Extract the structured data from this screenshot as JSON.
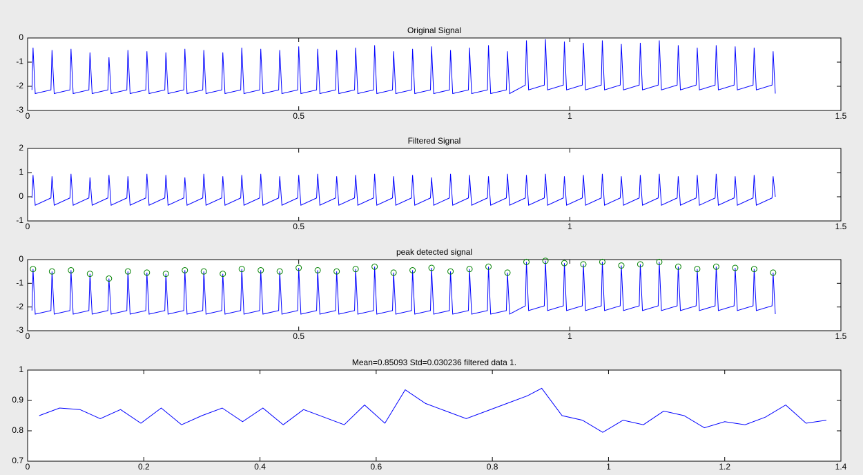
{
  "chart_data": [
    {
      "type": "line",
      "title": "Original Signal",
      "xlim": [
        0,
        1.5
      ],
      "xticks": [
        0,
        0.5,
        1,
        1.5
      ],
      "ylim": [
        -3,
        0
      ],
      "yticks": [
        -3,
        -2,
        -1,
        0
      ],
      "series": [
        {
          "color": "#0000ff",
          "x": [
            0.008,
            0.01,
            0.014,
            0.043,
            0.045,
            0.049,
            0.078,
            0.08,
            0.084,
            0.113,
            0.115,
            0.119,
            0.148,
            0.15,
            0.154,
            0.183,
            0.185,
            0.189,
            0.218,
            0.22,
            0.224,
            0.253,
            0.255,
            0.259,
            0.288,
            0.29,
            0.294,
            0.323,
            0.325,
            0.329,
            0.358,
            0.36,
            0.364,
            0.393,
            0.395,
            0.399,
            0.428,
            0.43,
            0.434,
            0.463,
            0.465,
            0.469,
            0.498,
            0.5,
            0.504,
            0.533,
            0.535,
            0.539,
            0.568,
            0.57,
            0.574,
            0.603,
            0.605,
            0.609,
            0.638,
            0.64,
            0.644,
            0.673,
            0.675,
            0.679,
            0.708,
            0.71,
            0.714,
            0.743,
            0.745,
            0.749,
            0.778,
            0.78,
            0.784,
            0.813,
            0.815,
            0.819,
            0.848,
            0.85,
            0.854,
            0.883,
            0.885,
            0.889,
            0.918,
            0.92,
            0.924,
            0.953,
            0.955,
            0.959,
            0.988,
            0.99,
            0.994,
            1.023,
            1.025,
            1.029,
            1.058,
            1.06,
            1.064,
            1.093,
            1.095,
            1.099,
            1.128,
            1.13,
            1.134,
            1.163,
            1.165,
            1.169,
            1.198,
            1.2,
            1.204,
            1.233,
            1.235,
            1.239,
            1.268,
            1.27,
            1.274,
            1.303,
            1.305,
            1.309,
            1.338,
            1.34,
            1.344,
            1.373,
            1.375,
            1.379
          ],
          "values": [
            -2.15,
            -0.4,
            -2.3,
            -2.15,
            -0.5,
            -2.3,
            -2.15,
            -0.45,
            -2.3,
            -2.15,
            -0.6,
            -2.3,
            -2.15,
            -0.8,
            -2.3,
            -2.15,
            -0.5,
            -2.3,
            -2.15,
            -0.55,
            -2.3,
            -2.15,
            -0.6,
            -2.3,
            -2.15,
            -0.45,
            -2.3,
            -2.15,
            -0.5,
            -2.3,
            -2.15,
            -0.6,
            -2.3,
            -2.15,
            -0.4,
            -2.3,
            -2.15,
            -0.45,
            -2.3,
            -2.15,
            -0.5,
            -2.3,
            -2.15,
            -0.35,
            -2.3,
            -2.15,
            -0.45,
            -2.3,
            -2.15,
            -0.5,
            -2.3,
            -2.15,
            -0.4,
            -2.3,
            -2.15,
            -0.3,
            -2.3,
            -2.15,
            -0.55,
            -2.3,
            -2.15,
            -0.45,
            -2.3,
            -2.15,
            -0.35,
            -2.3,
            -2.15,
            -0.5,
            -2.3,
            -2.15,
            -0.4,
            -2.3,
            -2.15,
            -0.3,
            -2.3,
            -2.15,
            -0.55,
            -2.3,
            -1.95,
            -0.1,
            -2.15,
            -1.95,
            -0.05,
            -2.15,
            -1.95,
            -0.15,
            -2.15,
            -1.95,
            -0.2,
            -2.15,
            -1.95,
            -0.1,
            -2.15,
            -1.95,
            -0.25,
            -2.15,
            -1.95,
            -0.2,
            -2.15,
            -1.95,
            -0.1,
            -2.15,
            -1.95,
            -0.3,
            -2.15,
            -1.95,
            -0.4,
            -2.15,
            -1.95,
            -0.3,
            -2.15,
            -1.95,
            -0.35,
            -2.15,
            -1.95,
            -0.4,
            -2.15,
            -1.95,
            -0.55,
            -2.3
          ]
        }
      ]
    },
    {
      "type": "line",
      "title": "Filtered Signal",
      "xlim": [
        0,
        1.5
      ],
      "xticks": [
        0,
        0.5,
        1,
        1.5
      ],
      "ylim": [
        -1,
        2
      ],
      "yticks": [
        -1,
        0,
        1,
        2
      ],
      "series": [
        {
          "color": "#0000ff",
          "x": [
            0.008,
            0.01,
            0.014,
            0.043,
            0.045,
            0.049,
            0.078,
            0.08,
            0.084,
            0.113,
            0.115,
            0.119,
            0.148,
            0.15,
            0.154,
            0.183,
            0.185,
            0.189,
            0.218,
            0.22,
            0.224,
            0.253,
            0.255,
            0.259,
            0.288,
            0.29,
            0.294,
            0.323,
            0.325,
            0.329,
            0.358,
            0.36,
            0.364,
            0.393,
            0.395,
            0.399,
            0.428,
            0.43,
            0.434,
            0.463,
            0.465,
            0.469,
            0.498,
            0.5,
            0.504,
            0.533,
            0.535,
            0.539,
            0.568,
            0.57,
            0.574,
            0.603,
            0.605,
            0.609,
            0.638,
            0.64,
            0.644,
            0.673,
            0.675,
            0.679,
            0.708,
            0.71,
            0.714,
            0.743,
            0.745,
            0.749,
            0.778,
            0.78,
            0.784,
            0.813,
            0.815,
            0.819,
            0.848,
            0.85,
            0.854,
            0.883,
            0.885,
            0.889,
            0.918,
            0.92,
            0.924,
            0.953,
            0.955,
            0.959,
            0.988,
            0.99,
            0.994,
            1.023,
            1.025,
            1.029,
            1.058,
            1.06,
            1.064,
            1.093,
            1.095,
            1.099,
            1.128,
            1.13,
            1.134,
            1.163,
            1.165,
            1.169,
            1.198,
            1.2,
            1.204,
            1.233,
            1.235,
            1.239,
            1.268,
            1.27,
            1.274,
            1.303,
            1.305,
            1.309,
            1.338,
            1.34,
            1.344,
            1.373,
            1.375,
            1.379
          ],
          "values": [
            -0.05,
            0.9,
            -0.35,
            -0.05,
            0.85,
            -0.35,
            -0.05,
            0.95,
            -0.35,
            -0.05,
            0.8,
            -0.35,
            -0.05,
            0.9,
            -0.35,
            -0.05,
            0.85,
            -0.35,
            -0.05,
            0.95,
            -0.35,
            -0.05,
            0.9,
            -0.35,
            -0.05,
            0.8,
            -0.35,
            -0.05,
            0.95,
            -0.35,
            -0.05,
            0.85,
            -0.35,
            -0.05,
            0.9,
            -0.35,
            -0.05,
            0.95,
            -0.35,
            -0.05,
            0.85,
            -0.35,
            -0.05,
            0.9,
            -0.35,
            -0.05,
            0.95,
            -0.35,
            -0.05,
            0.85,
            -0.35,
            -0.05,
            0.9,
            -0.35,
            -0.05,
            0.95,
            -0.35,
            -0.05,
            0.85,
            -0.35,
            -0.05,
            0.9,
            -0.35,
            -0.05,
            0.8,
            -0.35,
            -0.05,
            0.95,
            -0.35,
            -0.05,
            0.9,
            -0.35,
            -0.05,
            0.85,
            -0.35,
            -0.05,
            0.95,
            -0.35,
            -0.05,
            0.9,
            -0.35,
            -0.05,
            0.95,
            -0.35,
            -0.05,
            0.85,
            -0.35,
            -0.05,
            0.9,
            -0.35,
            -0.05,
            0.95,
            -0.35,
            -0.05,
            0.85,
            -0.35,
            -0.05,
            0.9,
            -0.35,
            -0.05,
            0.95,
            -0.35,
            -0.05,
            0.85,
            -0.35,
            -0.05,
            0.9,
            -0.35,
            -0.05,
            0.95,
            -0.35,
            -0.05,
            0.85,
            -0.35,
            -0.05,
            0.9,
            -0.35,
            -0.05,
            0.85,
            0
          ]
        }
      ]
    },
    {
      "type": "line",
      "title": "peak detected signal",
      "xlim": [
        0,
        1.5
      ],
      "xticks": [
        0,
        0.5,
        1,
        1.5
      ],
      "ylim": [
        -3,
        0
      ],
      "yticks": [
        -3,
        -2,
        -1,
        0
      ],
      "series": [
        {
          "color": "#0000ff",
          "x": [
            0.008,
            0.01,
            0.014,
            0.043,
            0.045,
            0.049,
            0.078,
            0.08,
            0.084,
            0.113,
            0.115,
            0.119,
            0.148,
            0.15,
            0.154,
            0.183,
            0.185,
            0.189,
            0.218,
            0.22,
            0.224,
            0.253,
            0.255,
            0.259,
            0.288,
            0.29,
            0.294,
            0.323,
            0.325,
            0.329,
            0.358,
            0.36,
            0.364,
            0.393,
            0.395,
            0.399,
            0.428,
            0.43,
            0.434,
            0.463,
            0.465,
            0.469,
            0.498,
            0.5,
            0.504,
            0.533,
            0.535,
            0.539,
            0.568,
            0.57,
            0.574,
            0.603,
            0.605,
            0.609,
            0.638,
            0.64,
            0.644,
            0.673,
            0.675,
            0.679,
            0.708,
            0.71,
            0.714,
            0.743,
            0.745,
            0.749,
            0.778,
            0.78,
            0.784,
            0.813,
            0.815,
            0.819,
            0.848,
            0.85,
            0.854,
            0.883,
            0.885,
            0.889,
            0.918,
            0.92,
            0.924,
            0.953,
            0.955,
            0.959,
            0.988,
            0.99,
            0.994,
            1.023,
            1.025,
            1.029,
            1.058,
            1.06,
            1.064,
            1.093,
            1.095,
            1.099,
            1.128,
            1.13,
            1.134,
            1.163,
            1.165,
            1.169,
            1.198,
            1.2,
            1.204,
            1.233,
            1.235,
            1.239,
            1.268,
            1.27,
            1.274,
            1.303,
            1.305,
            1.309,
            1.338,
            1.34,
            1.344,
            1.373,
            1.375,
            1.379
          ],
          "values": [
            -2.15,
            -0.4,
            -2.3,
            -2.15,
            -0.5,
            -2.3,
            -2.15,
            -0.45,
            -2.3,
            -2.15,
            -0.6,
            -2.3,
            -2.15,
            -0.8,
            -2.3,
            -2.15,
            -0.5,
            -2.3,
            -2.15,
            -0.55,
            -2.3,
            -2.15,
            -0.6,
            -2.3,
            -2.15,
            -0.45,
            -2.3,
            -2.15,
            -0.5,
            -2.3,
            -2.15,
            -0.6,
            -2.3,
            -2.15,
            -0.4,
            -2.3,
            -2.15,
            -0.45,
            -2.3,
            -2.15,
            -0.5,
            -2.3,
            -2.15,
            -0.35,
            -2.3,
            -2.15,
            -0.45,
            -2.3,
            -2.15,
            -0.5,
            -2.3,
            -2.15,
            -0.4,
            -2.3,
            -2.15,
            -0.3,
            -2.3,
            -2.15,
            -0.55,
            -2.3,
            -2.15,
            -0.45,
            -2.3,
            -2.15,
            -0.35,
            -2.3,
            -2.15,
            -0.5,
            -2.3,
            -2.15,
            -0.4,
            -2.3,
            -2.15,
            -0.3,
            -2.3,
            -2.15,
            -0.55,
            -2.3,
            -1.95,
            -0.1,
            -2.15,
            -1.95,
            -0.05,
            -2.15,
            -1.95,
            -0.15,
            -2.15,
            -1.95,
            -0.2,
            -2.15,
            -1.95,
            -0.1,
            -2.15,
            -1.95,
            -0.25,
            -2.15,
            -1.95,
            -0.2,
            -2.15,
            -1.95,
            -0.1,
            -2.15,
            -1.95,
            -0.3,
            -2.15,
            -1.95,
            -0.4,
            -2.15,
            -1.95,
            -0.3,
            -2.15,
            -1.95,
            -0.35,
            -2.15,
            -1.95,
            -0.4,
            -2.15,
            -1.95,
            -0.55,
            -2.3
          ]
        },
        {
          "type": "scatter",
          "color": "#008000",
          "x": [
            0.01,
            0.045,
            0.08,
            0.115,
            0.15,
            0.185,
            0.22,
            0.255,
            0.29,
            0.325,
            0.36,
            0.395,
            0.43,
            0.465,
            0.5,
            0.535,
            0.57,
            0.605,
            0.64,
            0.675,
            0.71,
            0.745,
            0.78,
            0.815,
            0.85,
            0.885,
            0.92,
            0.955,
            0.99,
            1.025,
            1.06,
            1.095,
            1.13,
            1.165,
            1.2,
            1.235,
            1.27,
            1.305,
            1.34,
            1.375
          ],
          "values": [
            -0.4,
            -0.5,
            -0.45,
            -0.6,
            -0.8,
            -0.5,
            -0.55,
            -0.6,
            -0.45,
            -0.5,
            -0.6,
            -0.4,
            -0.45,
            -0.5,
            -0.35,
            -0.45,
            -0.5,
            -0.4,
            -0.3,
            -0.55,
            -0.45,
            -0.35,
            -0.5,
            -0.4,
            -0.3,
            -0.55,
            -0.1,
            -0.05,
            -0.15,
            -0.2,
            -0.1,
            -0.25,
            -0.2,
            -0.1,
            -0.3,
            -0.4,
            -0.3,
            -0.35,
            -0.4,
            -0.55
          ]
        }
      ]
    },
    {
      "type": "line",
      "title": "Mean=0.85093 Std=0.030236 filtered data 1.",
      "xlim": [
        0,
        1.4
      ],
      "xticks": [
        0,
        0.2,
        0.4,
        0.6,
        0.8,
        1,
        1.2,
        1.4
      ],
      "ylim": [
        0.7,
        1
      ],
      "yticks": [
        0.7,
        0.8,
        0.9,
        1
      ],
      "series": [
        {
          "color": "#0000ff",
          "x": [
            0.02,
            0.055,
            0.09,
            0.125,
            0.16,
            0.195,
            0.23,
            0.265,
            0.3,
            0.335,
            0.37,
            0.405,
            0.44,
            0.475,
            0.51,
            0.545,
            0.58,
            0.615,
            0.65,
            0.685,
            0.72,
            0.755,
            0.79,
            0.825,
            0.86,
            0.885,
            0.92,
            0.955,
            0.99,
            1.025,
            1.06,
            1.095,
            1.13,
            1.165,
            1.2,
            1.235,
            1.27,
            1.305,
            1.34,
            1.375
          ],
          "values": [
            0.85,
            0.875,
            0.87,
            0.84,
            0.87,
            0.825,
            0.875,
            0.82,
            0.85,
            0.875,
            0.83,
            0.875,
            0.82,
            0.87,
            0.845,
            0.82,
            0.885,
            0.825,
            0.935,
            0.89,
            0.865,
            0.84,
            0.865,
            0.89,
            0.915,
            0.94,
            0.85,
            0.835,
            0.795,
            0.835,
            0.82,
            0.865,
            0.85,
            0.81,
            0.83,
            0.82,
            0.845,
            0.885,
            0.825,
            0.835
          ]
        }
      ]
    }
  ]
}
